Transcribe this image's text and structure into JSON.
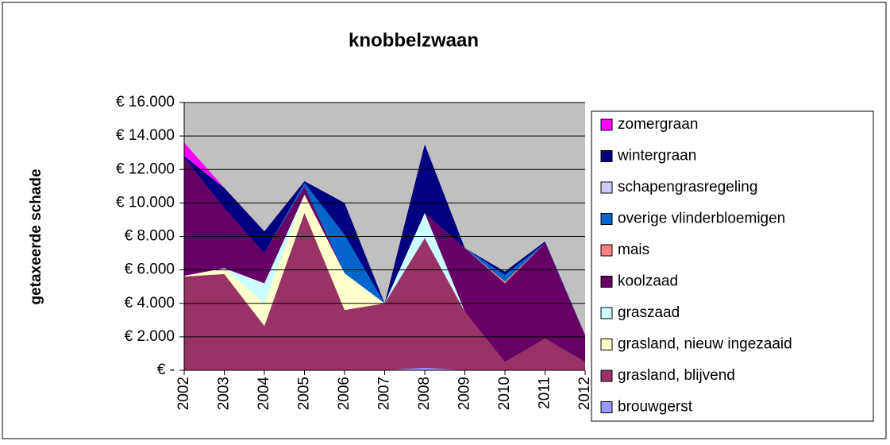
{
  "chart_data": {
    "type": "stacked_area",
    "title": "knobbelzwaan",
    "y_label": "getaxeerde schade",
    "categories": [
      "2002",
      "2003",
      "2004",
      "2005",
      "2006",
      "2007",
      "2008",
      "2009",
      "2010",
      "2011",
      "2012"
    ],
    "series": [
      {
        "name": "brouwgerst",
        "color": "#9999ff",
        "values": [
          0,
          0,
          0,
          0,
          0,
          0,
          150,
          0,
          0,
          0,
          0
        ]
      },
      {
        "name": "grasland, blijvend",
        "color": "#993366",
        "values": [
          5600,
          5750,
          2650,
          9400,
          3600,
          4000,
          7750,
          3500,
          500,
          1900,
          500
        ]
      },
      {
        "name": "grasland, nieuw ingezaaid",
        "color": "#ffffcc",
        "values": [
          50,
          350,
          1350,
          1100,
          2200,
          0,
          0,
          0,
          0,
          0,
          0
        ]
      },
      {
        "name": "graszaad",
        "color": "#ccffff",
        "values": [
          0,
          0,
          1200,
          0,
          0,
          0,
          1500,
          0,
          0,
          0,
          0
        ]
      },
      {
        "name": "koolzaad",
        "color": "#660066",
        "values": [
          7050,
          3600,
          1800,
          500,
          0,
          0,
          0,
          3800,
          4700,
          5700,
          1600
        ]
      },
      {
        "name": "mais",
        "color": "#ff8080",
        "values": [
          0,
          0,
          0,
          0,
          0,
          0,
          0,
          0,
          100,
          0,
          0
        ]
      },
      {
        "name": "overige vlinderbloemigen",
        "color": "#0066cc",
        "values": [
          0,
          0,
          0,
          200,
          2300,
          0,
          0,
          0,
          400,
          0,
          0
        ]
      },
      {
        "name": "schapengrasregeling",
        "color": "#ccccff",
        "values": [
          0,
          0,
          0,
          0,
          0,
          0,
          0,
          0,
          0,
          0,
          0
        ]
      },
      {
        "name": "wintergraan",
        "color": "#000080",
        "values": [
          100,
          1200,
          1300,
          100,
          1900,
          0,
          4100,
          0,
          200,
          100,
          0
        ]
      },
      {
        "name": "zomergraan",
        "color": "#ff00ff",
        "values": [
          800,
          0,
          0,
          0,
          0,
          0,
          0,
          0,
          0,
          0,
          0
        ]
      }
    ],
    "ylim": [
      0,
      16000
    ],
    "yticks": [
      {
        "value": 0,
        "label": "€ -"
      },
      {
        "value": 2000,
        "label": "€ 2.000"
      },
      {
        "value": 4000,
        "label": "€ 4.000"
      },
      {
        "value": 6000,
        "label": "€ 6.000"
      },
      {
        "value": 8000,
        "label": "€ 8.000"
      },
      {
        "value": 10000,
        "label": "€ 10.000"
      },
      {
        "value": 12000,
        "label": "€ 12.000"
      },
      {
        "value": 14000,
        "label": "€ 14.000"
      },
      {
        "value": 16000,
        "label": "€ 16.000"
      }
    ],
    "grid": true,
    "legend": "right"
  }
}
